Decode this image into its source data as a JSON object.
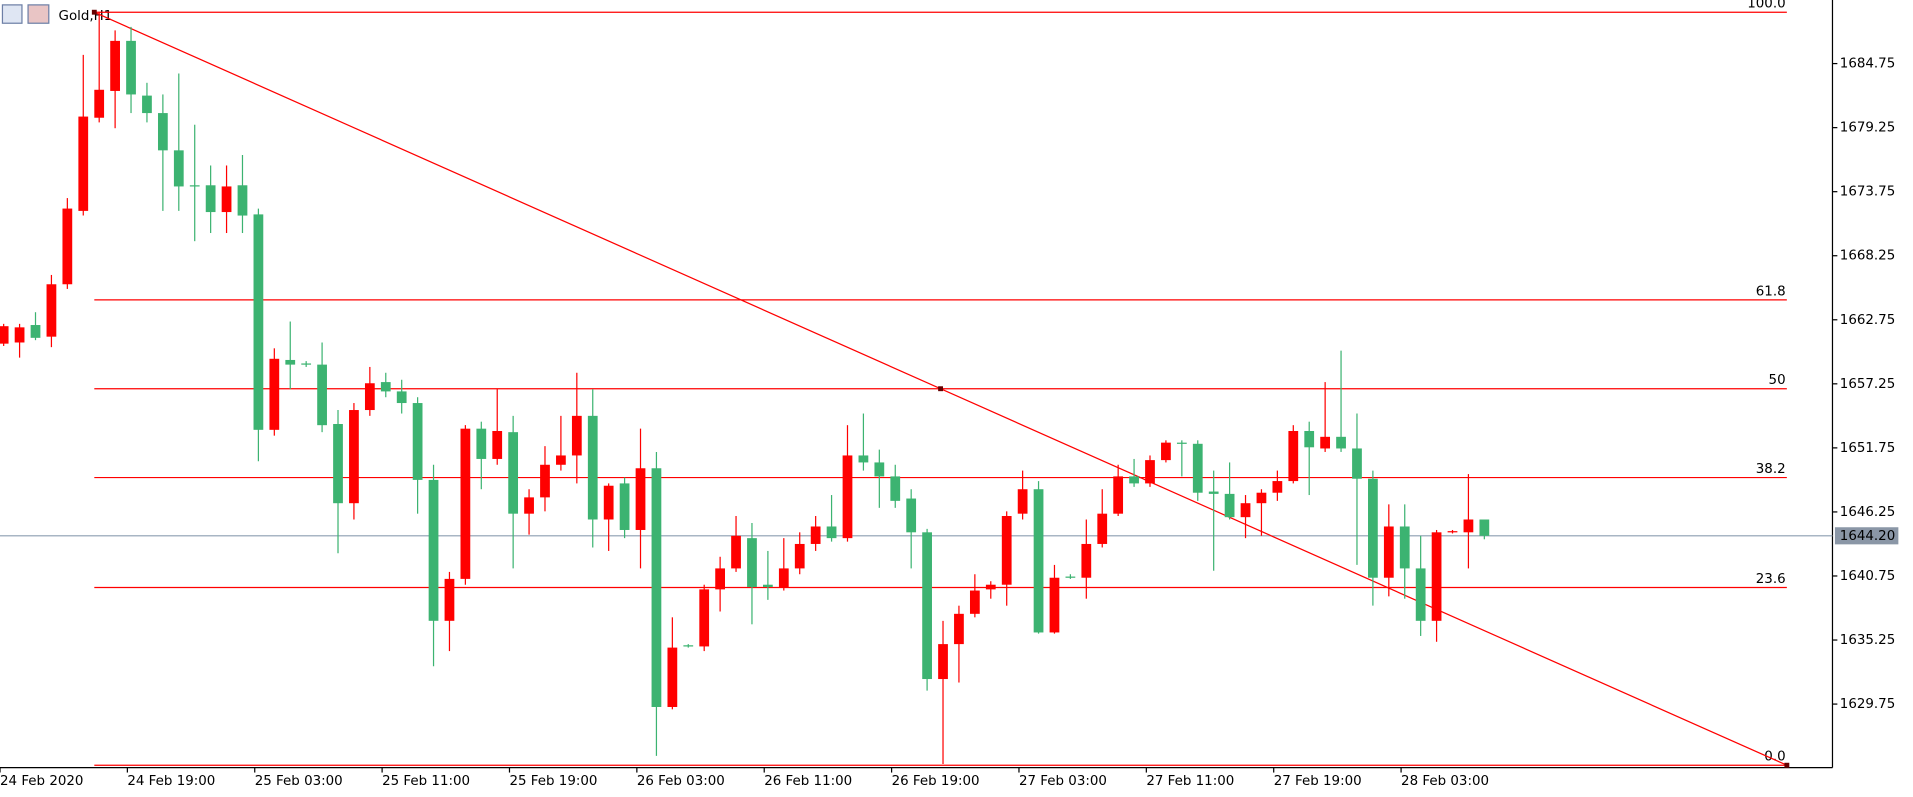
{
  "chart_data": {
    "type": "candlestick",
    "title": "Gold,H1",
    "series": [
      {
        "name": "Gold,H1",
        "open": [
          1660.7,
          1660.8,
          1662.3,
          1661.3,
          1665.8,
          1672.1,
          1680.1,
          1682.4,
          1686.7,
          1682.0,
          1680.5,
          1677.3,
          1674.3,
          1674.3,
          1672.0,
          1674.3,
          1671.8,
          1653.3,
          1659.3,
          1659.0,
          1658.9,
          1653.8,
          1647.0,
          1655.0,
          1657.4,
          1656.6,
          1655.6,
          1649.0,
          1636.9,
          1640.5,
          1653.4,
          1650.8,
          1653.1,
          1646.1,
          1647.5,
          1650.3,
          1651.1,
          1654.5,
          1645.6,
          1648.7,
          1644.7,
          1650.0,
          1629.5,
          1634.8,
          1634.7,
          1639.6,
          1641.4,
          1644.0,
          1640.0,
          1639.8,
          1641.4,
          1643.5,
          1645.0,
          1644.0,
          1651.1,
          1650.5,
          1649.3,
          1647.4,
          1644.5,
          1631.9,
          1634.9,
          1637.5,
          1639.6,
          1640.0,
          1646.1,
          1648.2,
          1635.9,
          1640.7,
          1640.6,
          1643.5,
          1646.1,
          1649.3,
          1648.7,
          1650.7,
          1652.2,
          1652.1,
          1648.0,
          1647.8,
          1645.8,
          1647.0,
          1647.9,
          1648.9,
          1653.2,
          1651.7,
          1652.7,
          1651.7,
          1649.1,
          1640.6,
          1645.0,
          1641.4,
          1636.9,
          1644.5,
          1644.5,
          1645.6
        ],
        "high": [
          1662.4,
          1662.4,
          1663.4,
          1666.6,
          1673.2,
          1685.5,
          1689.2,
          1687.6,
          1687.9,
          1683.1,
          1682.1,
          1683.9,
          1679.5,
          1676.0,
          1676.0,
          1676.9,
          1672.3,
          1660.3,
          1662.6,
          1659.2,
          1660.8,
          1655.0,
          1655.6,
          1658.7,
          1658.2,
          1657.6,
          1656.1,
          1650.3,
          1641.1,
          1653.7,
          1654.0,
          1656.8,
          1654.5,
          1648.2,
          1651.9,
          1654.5,
          1658.2,
          1656.8,
          1648.7,
          1649.2,
          1653.4,
          1651.4,
          1637.2,
          1634.9,
          1640.0,
          1642.4,
          1645.9,
          1645.3,
          1642.9,
          1644.0,
          1644.5,
          1645.9,
          1647.7,
          1653.7,
          1654.7,
          1651.6,
          1650.3,
          1648.2,
          1644.8,
          1636.9,
          1638.2,
          1640.9,
          1640.3,
          1646.3,
          1649.8,
          1648.9,
          1641.7,
          1640.9,
          1645.6,
          1648.2,
          1650.3,
          1650.8,
          1651.1,
          1652.4,
          1652.4,
          1652.4,
          1649.8,
          1650.5,
          1647.7,
          1648.2,
          1649.8,
          1653.7,
          1654.0,
          1657.4,
          1660.1,
          1654.7,
          1649.8,
          1646.9,
          1646.9,
          1644.2,
          1644.7,
          1644.7,
          1649.5,
          1645.6
        ],
        "low": [
          1660.5,
          1659.5,
          1661.0,
          1660.4,
          1665.4,
          1671.7,
          1679.7,
          1679.2,
          1680.5,
          1679.7,
          1672.1,
          1672.1,
          1669.5,
          1670.2,
          1670.2,
          1670.2,
          1650.6,
          1652.8,
          1656.8,
          1658.7,
          1653.1,
          1642.7,
          1645.6,
          1654.5,
          1656.1,
          1654.7,
          1646.1,
          1633.0,
          1634.3,
          1640.0,
          1648.2,
          1650.3,
          1641.4,
          1644.3,
          1646.3,
          1649.8,
          1648.7,
          1643.2,
          1642.9,
          1644.0,
          1641.4,
          1625.3,
          1629.3,
          1634.6,
          1634.3,
          1637.7,
          1641.1,
          1636.6,
          1638.7,
          1639.5,
          1640.9,
          1642.9,
          1643.7,
          1643.7,
          1649.8,
          1646.6,
          1646.6,
          1641.4,
          1630.9,
          1624.6,
          1631.6,
          1637.2,
          1638.8,
          1638.2,
          1645.6,
          1635.8,
          1635.8,
          1640.5,
          1638.8,
          1643.2,
          1645.9,
          1648.4,
          1648.4,
          1650.5,
          1649.3,
          1647.2,
          1641.2,
          1645.6,
          1644.0,
          1644.2,
          1647.2,
          1648.7,
          1647.7,
          1651.4,
          1651.4,
          1641.7,
          1638.2,
          1639.0,
          1638.8,
          1635.6,
          1635.1,
          1644.4,
          1641.4,
          1643.9
        ],
        "close": [
          1662.2,
          1662.1,
          1661.2,
          1665.8,
          1672.3,
          1680.2,
          1682.5,
          1686.7,
          1682.1,
          1680.5,
          1677.3,
          1674.2,
          1674.2,
          1672.0,
          1674.2,
          1671.7,
          1653.3,
          1659.4,
          1658.9,
          1658.9,
          1653.7,
          1647.0,
          1655.0,
          1657.3,
          1656.6,
          1655.6,
          1649.0,
          1636.9,
          1640.5,
          1653.4,
          1650.8,
          1653.2,
          1646.1,
          1647.5,
          1650.3,
          1651.1,
          1654.5,
          1645.6,
          1648.5,
          1644.7,
          1650.0,
          1629.5,
          1634.6,
          1634.7,
          1639.6,
          1641.4,
          1644.2,
          1639.8,
          1639.8,
          1641.4,
          1643.5,
          1645.0,
          1644.0,
          1651.1,
          1650.5,
          1649.3,
          1647.2,
          1644.5,
          1631.9,
          1634.9,
          1637.5,
          1639.5,
          1640.0,
          1645.9,
          1648.2,
          1635.9,
          1640.6,
          1640.6,
          1643.5,
          1646.1,
          1649.3,
          1648.7,
          1650.7,
          1652.2,
          1652.1,
          1647.9,
          1647.8,
          1645.8,
          1647.0,
          1647.9,
          1648.9,
          1653.2,
          1651.8,
          1652.7,
          1651.7,
          1649.1,
          1640.6,
          1645.0,
          1641.4,
          1636.9,
          1644.5,
          1644.6,
          1645.6,
          1644.2
        ]
      }
    ],
    "bull_color": "#ff0000",
    "bear_color": "#3cb371",
    "ylim": [
      1624.29,
      1690.21
    ],
    "yticks": [
      1629.75,
      1635.25,
      1640.75,
      1646.25,
      1651.75,
      1657.25,
      1662.75,
      1668.25,
      1673.75,
      1679.25,
      1684.75
    ],
    "xticks": [
      {
        "value": 0,
        "label": "24 Feb 2020"
      },
      {
        "value": 8,
        "label": "24 Feb 19:00"
      },
      {
        "value": 16,
        "label": "25 Feb 03:00"
      },
      {
        "value": 24,
        "label": "25 Feb 11:00"
      },
      {
        "value": 32,
        "label": "25 Feb 19:00"
      },
      {
        "value": 40,
        "label": "26 Feb 03:00"
      },
      {
        "value": 48,
        "label": "26 Feb 11:00"
      },
      {
        "value": 56,
        "label": "26 Feb 19:00"
      },
      {
        "value": 64,
        "label": "27 Feb 03:00"
      },
      {
        "value": 72,
        "label": "27 Feb 11:00"
      },
      {
        "value": 80,
        "label": "27 Feb 19:00"
      },
      {
        "value": 88,
        "label": "28 Feb 03:00"
      }
    ],
    "current_price": {
      "value": 1644.2,
      "label": "1644.20"
    },
    "fibonacci": {
      "start_index": 6,
      "end_index": 112,
      "high": 1689.16,
      "low": 1624.5,
      "color": "#ff0000",
      "levels": [
        {
          "value": 0,
          "label": "0.0"
        },
        23.6,
        38.2,
        50,
        61.8,
        {
          "value": 100,
          "label": "100.0"
        }
      ]
    }
  }
}
